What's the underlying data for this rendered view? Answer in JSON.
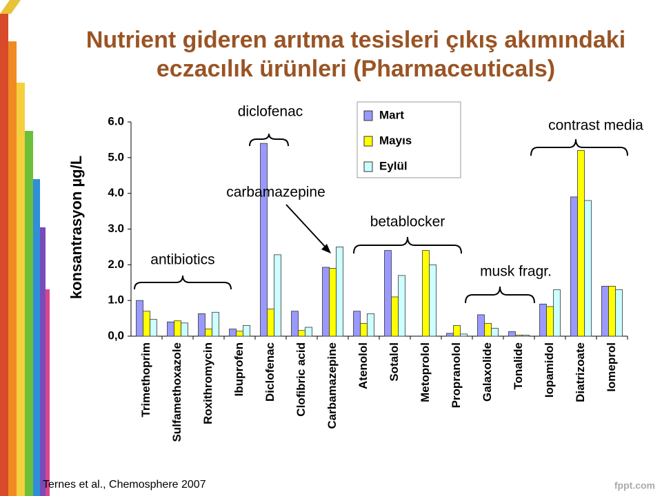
{
  "chart_data": {
    "type": "bar",
    "title": [
      "Nutrient gideren arıtma tesisleri çıkış akımındaki",
      "eczacılık ürünleri (Pharmaceuticals)"
    ],
    "y_label": "konsantrasyon µg/L",
    "categories": [
      "Trimethoprim",
      "Sulfamethoxazole",
      "Roxithromycin",
      "Ibuprofen",
      "Diclofenac",
      "Clofibric acid",
      "Carbamazepine",
      "Atenolol",
      "Sotalol",
      "Metoprolol",
      "Propranolol",
      "Galaxolide",
      "Tonalide",
      "Iopamidol",
      "Diatrizoate",
      "Iomeprol"
    ],
    "series": [
      {
        "name": "Mart",
        "color": "#9999ff",
        "values": [
          1.0,
          0.4,
          0.63,
          0.2,
          5.4,
          0.7,
          1.93,
          0.7,
          2.4,
          null,
          0.08,
          0.6,
          0.13,
          0.9,
          3.9,
          1.4
        ]
      },
      {
        "name": "Mayıs",
        "color": "#ffff00",
        "values": [
          0.7,
          0.43,
          0.2,
          0.14,
          0.76,
          0.16,
          1.9,
          0.36,
          1.1,
          2.4,
          0.3,
          0.36,
          0.03,
          0.83,
          5.2,
          1.4
        ]
      },
      {
        "name": "Eylül",
        "color": "#ccffff",
        "values": [
          0.47,
          0.37,
          0.67,
          0.3,
          2.28,
          0.25,
          2.5,
          0.63,
          1.7,
          2.0,
          0.06,
          0.22,
          0.03,
          1.3,
          3.8,
          1.3
        ]
      }
    ],
    "ylim": [
      0,
      6
    ],
    "yticks": [
      {
        "value": 0,
        "label": "0,0"
      },
      {
        "value": 1,
        "label": "1.0"
      },
      {
        "value": 2,
        "label": "2.0"
      },
      {
        "value": 3,
        "label": "3.0"
      },
      {
        "value": 4,
        "label": "4.0"
      },
      {
        "value": 5,
        "label": "5.0"
      },
      {
        "value": 6,
        "label": "6.0"
      }
    ],
    "annotations": [
      "diclofenac",
      "carbamazepine",
      "antibiotics",
      "betablocker",
      "musk fragr.",
      "contrast media"
    ],
    "source": "Ternes et al., Chemosphere 2007",
    "watermark": "fppt.com"
  }
}
